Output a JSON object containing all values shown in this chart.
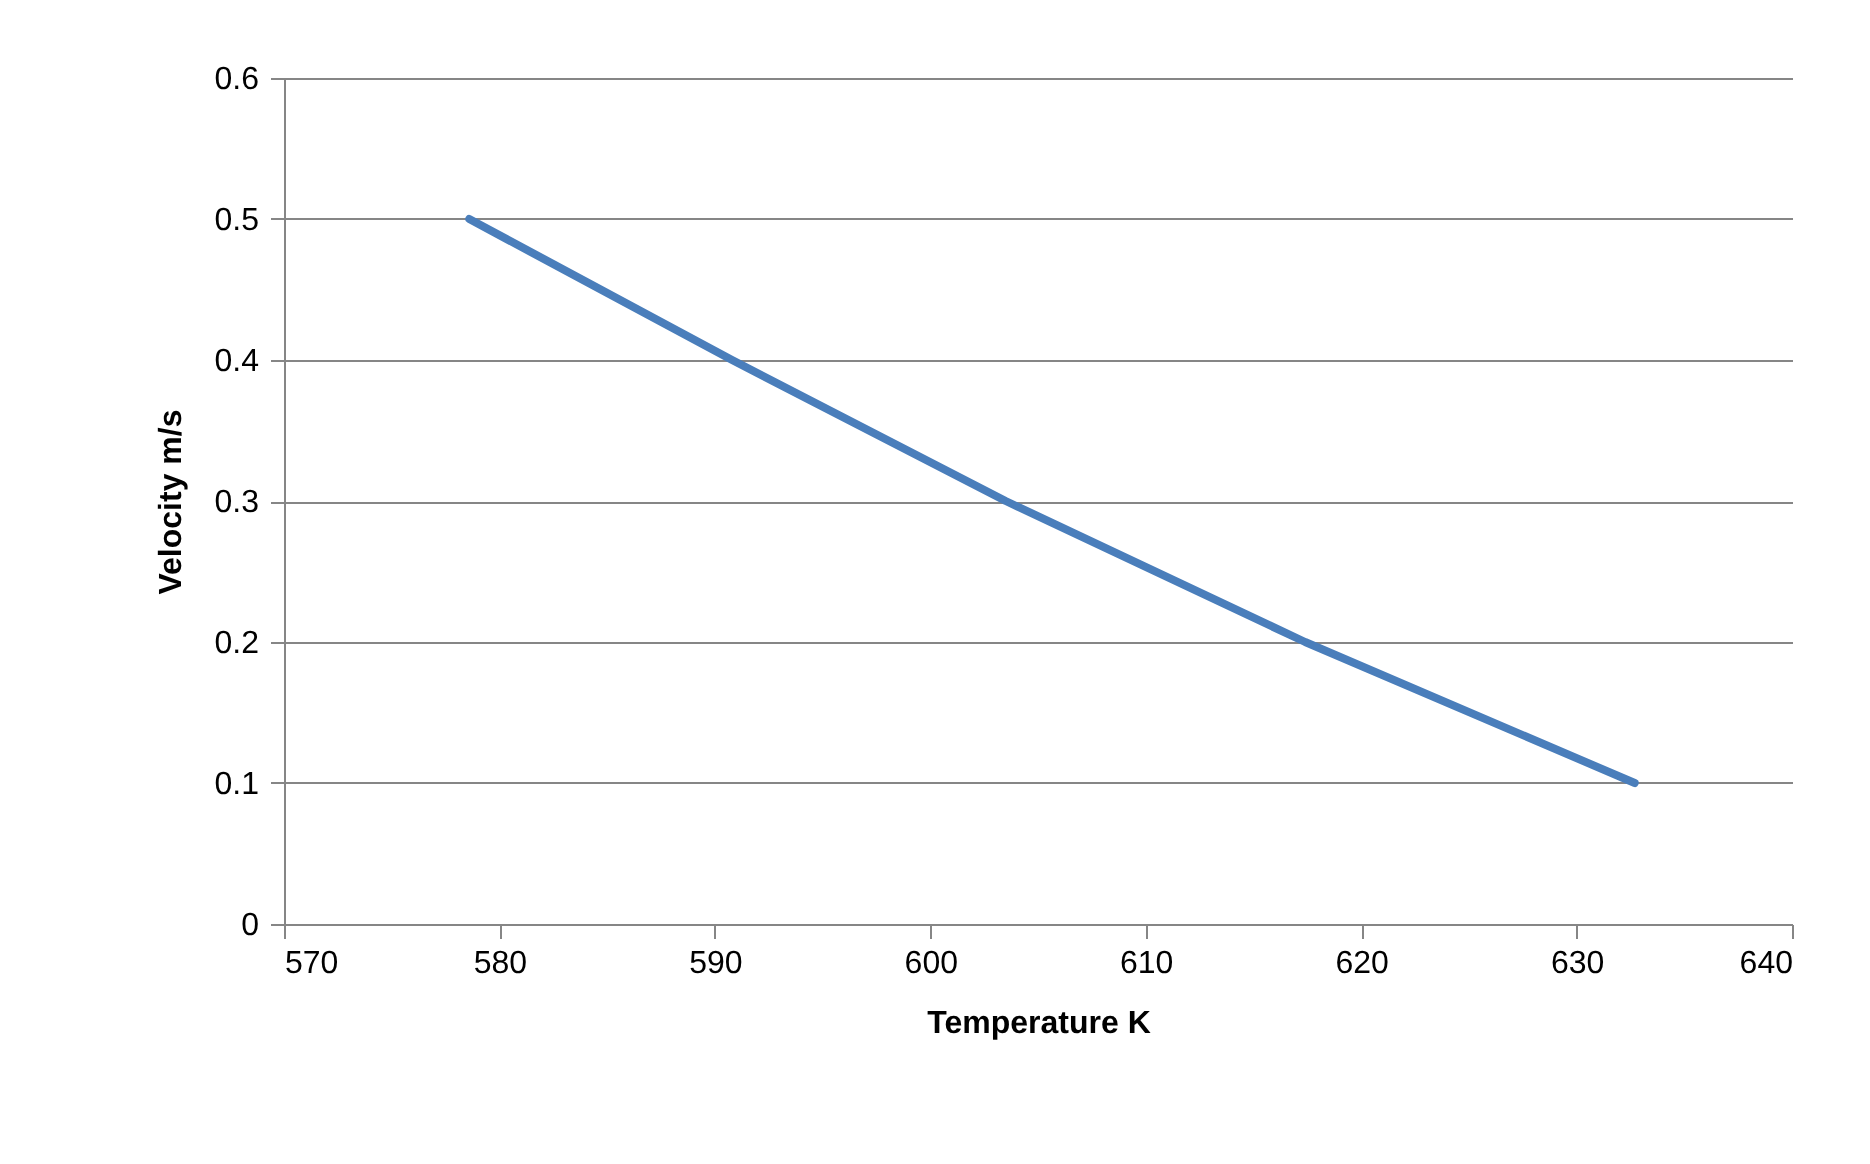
{
  "chart_data": {
    "type": "line",
    "xlabel": "Temperature K",
    "ylabel": "Velocity m/s",
    "x": [
      578.6,
      590.8,
      603.5,
      617.4,
      632.7
    ],
    "series": [
      {
        "color": "#4a7ebb",
        "values": [
          0.5,
          0.4,
          0.3,
          0.2,
          0.1
        ]
      }
    ],
    "xlim": [
      570,
      640
    ],
    "xticks": [
      570,
      580,
      590,
      600,
      610,
      620,
      630,
      640
    ],
    "ylim": [
      0,
      0.6
    ],
    "yticks": [
      0,
      0.1,
      0.2,
      0.3,
      0.4,
      0.5,
      0.6
    ],
    "grid": "y",
    "marker": "none",
    "line_style": "solid"
  }
}
